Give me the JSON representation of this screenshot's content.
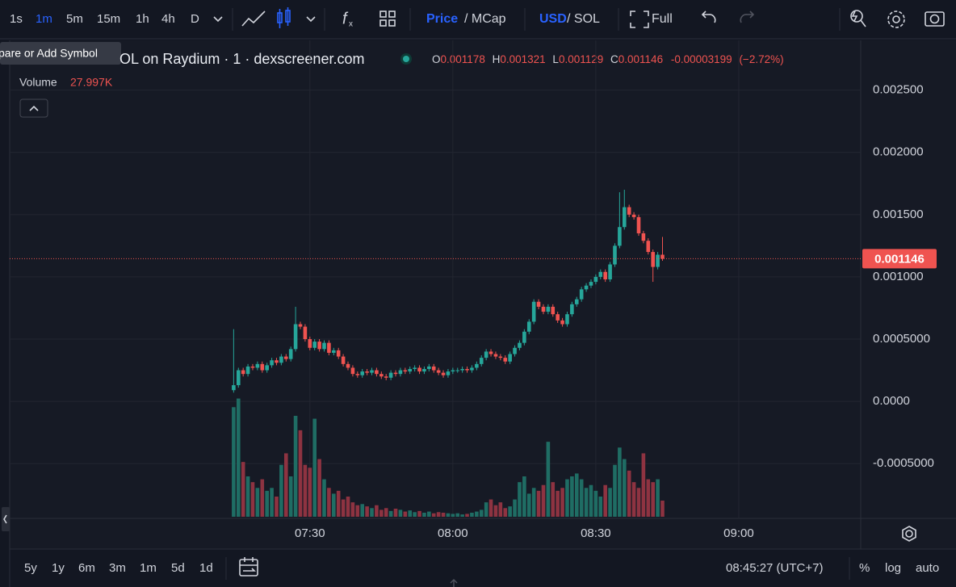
{
  "toolbar": {
    "intervals": [
      "1s",
      "1m",
      "5m",
      "15m",
      "1h",
      "4h",
      "D"
    ],
    "active_interval": 1,
    "price": "Price",
    "mcap": "/ MCap",
    "usd": "USD",
    "sol": "/ SOL",
    "full": "Full"
  },
  "tooltip": "pare or Add Symbol",
  "symbol": "OL on Raydium · 1 · dexscreener.com",
  "ohlc_labels": {
    "o": "O",
    "h": "H",
    "l": "L",
    "c": "C"
  },
  "change": -3.199e-05,
  "change_pct": "(−2.72%)",
  "volume_title": "Volume",
  "volume_label": "27.997K",
  "chart_data": {
    "type": "candlestick",
    "x": [
      434,
      435,
      436,
      437,
      438,
      439,
      440,
      441,
      442,
      443,
      444,
      445,
      446,
      447,
      448,
      449,
      450,
      451,
      452,
      453,
      454,
      455,
      456,
      457,
      458,
      459,
      460,
      461,
      462,
      463,
      464,
      465,
      466,
      467,
      468,
      469,
      470,
      471,
      472,
      473,
      474,
      475,
      476,
      477,
      478,
      479,
      480,
      481,
      482,
      483,
      484,
      485,
      486,
      487,
      488,
      489,
      490,
      491,
      492,
      493,
      494,
      495,
      496,
      497,
      498,
      499,
      500,
      501,
      502,
      503,
      504,
      505,
      506,
      507,
      508,
      509,
      510,
      511,
      512,
      513,
      514,
      515,
      516,
      517,
      518,
      519,
      520,
      521,
      522,
      523,
      524
    ],
    "open": [
      9e-05,
      0.00013,
      0.00025,
      0.00022,
      0.00028,
      0.00027,
      0.0003,
      0.00025,
      0.00029,
      0.00033,
      0.00031,
      0.00036,
      0.00034,
      0.00042,
      0.00062,
      0.0006,
      0.0005,
      0.00043,
      0.00048,
      0.00042,
      0.00047,
      0.00039,
      0.00041,
      0.00036,
      0.0003,
      0.00027,
      0.00022,
      0.00021,
      0.00024,
      0.00023,
      0.00025,
      0.00022,
      0.0002,
      0.00019,
      0.00023,
      0.00022,
      0.00025,
      0.00024,
      0.00026,
      0.00027,
      0.00024,
      0.00026,
      0.00028,
      0.00025,
      0.00023,
      0.00021,
      0.00024,
      0.00025,
      0.00025,
      0.00026,
      0.00025,
      0.00027,
      0.0003,
      0.00035,
      0.0004,
      0.00038,
      0.00036,
      0.00035,
      0.00032,
      0.00038,
      0.00043,
      0.00047,
      0.00056,
      0.00064,
      0.0008,
      0.00076,
      0.00072,
      0.00076,
      0.0007,
      0.00065,
      0.00062,
      0.0007,
      0.00078,
      0.00082,
      0.0009,
      0.00093,
      0.00096,
      0.001,
      0.00104,
      0.00098,
      0.0011,
      0.00125,
      0.0014,
      0.00156,
      0.0015,
      0.00148,
      0.00135,
      0.00129,
      0.0012,
      0.00108,
      0.001178
    ],
    "high": [
      0.00058,
      0.00027,
      0.00027,
      0.0003,
      0.0003,
      0.00032,
      0.00032,
      0.00031,
      0.00035,
      0.00035,
      0.00038,
      0.00038,
      0.00044,
      0.00076,
      0.00064,
      0.00062,
      0.00052,
      0.0005,
      0.0005,
      0.00049,
      0.00049,
      0.00043,
      0.00043,
      0.00038,
      0.00032,
      0.00029,
      0.00024,
      0.00026,
      0.00026,
      0.00027,
      0.00027,
      0.00024,
      0.00022,
      0.00025,
      0.00025,
      0.00027,
      0.00027,
      0.00028,
      0.00029,
      0.00029,
      0.00028,
      0.0003,
      0.0003,
      0.00027,
      0.00025,
      0.00026,
      0.00027,
      0.00027,
      0.00028,
      0.00028,
      0.00029,
      0.00032,
      0.00037,
      0.00042,
      0.00042,
      0.0004,
      0.00038,
      0.00037,
      0.0004,
      0.00045,
      0.00049,
      0.00058,
      0.00066,
      0.00082,
      0.00082,
      0.00078,
      0.00078,
      0.00078,
      0.00072,
      0.00067,
      0.00072,
      0.0008,
      0.00084,
      0.00092,
      0.00095,
      0.00098,
      0.00102,
      0.00106,
      0.00106,
      0.00112,
      0.00127,
      0.00168,
      0.0017,
      0.00158,
      0.00152,
      0.0015,
      0.00137,
      0.00131,
      0.00122,
      0.0012,
      0.001321
    ],
    "low": [
      7e-05,
      0.00011,
      0.0002,
      0.0002,
      0.00025,
      0.00025,
      0.00023,
      0.00023,
      0.00027,
      0.00029,
      0.00029,
      0.00032,
      0.00032,
      0.0004,
      0.00058,
      0.00048,
      0.00041,
      0.00041,
      0.0004,
      0.0004,
      0.00037,
      0.00037,
      0.00034,
      0.00028,
      0.00025,
      0.0002,
      0.00019,
      0.00019,
      0.00021,
      0.00021,
      0.0002,
      0.00018,
      0.00017,
      0.00017,
      0.0002,
      0.0002,
      0.00022,
      0.00022,
      0.00024,
      0.00022,
      0.00022,
      0.00024,
      0.00023,
      0.00021,
      0.00019,
      0.00019,
      0.00022,
      0.00023,
      0.00023,
      0.00023,
      0.00023,
      0.00025,
      0.00028,
      0.00033,
      0.00036,
      0.00034,
      0.00033,
      0.0003,
      0.0003,
      0.00036,
      0.00041,
      0.00045,
      0.00054,
      0.00062,
      0.00074,
      0.0007,
      0.0007,
      0.00068,
      0.00063,
      0.0006,
      0.0006,
      0.00068,
      0.00076,
      0.0008,
      0.00088,
      0.00091,
      0.00094,
      0.00098,
      0.00096,
      0.00096,
      0.00108,
      0.00123,
      0.00138,
      0.00148,
      0.00146,
      0.00133,
      0.00127,
      0.00118,
      0.00096,
      0.00106,
      0.001129
    ],
    "close": [
      0.00013,
      0.00025,
      0.00022,
      0.00028,
      0.00027,
      0.0003,
      0.00025,
      0.00029,
      0.00033,
      0.00031,
      0.00036,
      0.00034,
      0.00042,
      0.00062,
      0.0006,
      0.0005,
      0.00043,
      0.00048,
      0.00042,
      0.00047,
      0.00039,
      0.00041,
      0.00036,
      0.0003,
      0.00027,
      0.00022,
      0.00021,
      0.00024,
      0.00023,
      0.00025,
      0.00022,
      0.0002,
      0.00019,
      0.00023,
      0.00022,
      0.00025,
      0.00024,
      0.00026,
      0.00027,
      0.00024,
      0.00026,
      0.00028,
      0.00025,
      0.00023,
      0.00021,
      0.00024,
      0.00025,
      0.00025,
      0.00026,
      0.00025,
      0.00027,
      0.0003,
      0.00035,
      0.0004,
      0.00038,
      0.00036,
      0.00035,
      0.00032,
      0.00038,
      0.00043,
      0.00047,
      0.00056,
      0.00064,
      0.0008,
      0.00076,
      0.00072,
      0.00076,
      0.0007,
      0.00065,
      0.00062,
      0.0007,
      0.00078,
      0.00082,
      0.0009,
      0.00093,
      0.00096,
      0.001,
      0.00104,
      0.00098,
      0.0011,
      0.00125,
      0.0014,
      0.00156,
      0.0015,
      0.00148,
      0.00135,
      0.00129,
      0.0012,
      0.00108,
      0.001178,
      0.001146
    ],
    "volume": [
      190000,
      205000,
      95000,
      70000,
      60000,
      50000,
      65000,
      45000,
      50000,
      35000,
      90000,
      110000,
      70000,
      175000,
      150000,
      90000,
      85000,
      170000,
      100000,
      65000,
      50000,
      40000,
      45000,
      30000,
      35000,
      25000,
      20000,
      22000,
      18000,
      15000,
      20000,
      12000,
      15000,
      10000,
      14000,
      12000,
      9000,
      11000,
      8000,
      10000,
      7000,
      9000,
      6000,
      8000,
      7000,
      6000,
      5000,
      6000,
      4000,
      5000,
      7000,
      9000,
      12000,
      25000,
      30000,
      20000,
      25000,
      15000,
      18000,
      30000,
      60000,
      70000,
      40000,
      50000,
      45000,
      55000,
      130000,
      60000,
      45000,
      50000,
      65000,
      70000,
      75000,
      65000,
      50000,
      55000,
      45000,
      35000,
      55000,
      50000,
      90000,
      120000,
      100000,
      80000,
      60000,
      50000,
      110000,
      65000,
      60000,
      65000,
      27997
    ],
    "xlim": [
      387,
      565.6
    ],
    "xticks": [
      {
        "value": 450,
        "label": "07:30"
      },
      {
        "value": 480,
        "label": "08:00"
      },
      {
        "value": 510,
        "label": "08:30"
      },
      {
        "value": 540,
        "label": "09:00"
      }
    ],
    "ylim": [
      -0.00094,
      0.0029
    ],
    "yticks": [
      {
        "value": 0.0025,
        "label": "0.002500"
      },
      {
        "value": 0.002,
        "label": "0.002000"
      },
      {
        "value": 0.0015,
        "label": "0.001500"
      },
      {
        "value": 0.001,
        "label": "0.001000"
      },
      {
        "value": 0.0005,
        "label": "0.0005000"
      },
      {
        "value": 0,
        "label": "0.0000"
      },
      {
        "value": -0.0005,
        "label": "-0.0005000"
      }
    ],
    "volume_lim": [
      0,
      210000
    ],
    "grid": true,
    "up_color": "#26a69a",
    "down_color": "#ef5350",
    "volume_up_color": "#1f6d64",
    "volume_down_color": "#8e3341"
  },
  "bottom": {
    "ranges": [
      "5y",
      "1y",
      "6m",
      "3m",
      "1m",
      "5d",
      "1d"
    ],
    "clock": "08:45:27 (UTC+7)",
    "percent": "%",
    "log": "log",
    "auto": "auto"
  }
}
